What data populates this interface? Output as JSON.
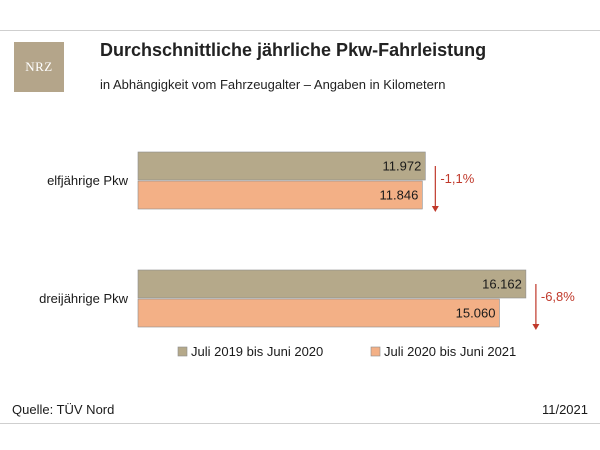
{
  "header": {
    "logo_text": "NRZ",
    "title": "Durchschnittliche jährliche Pkw-Fahrleistung",
    "subtitle": "in Abhängigkeit vom Fahrzeugalter – Angaben in Kilometern"
  },
  "footer": {
    "source": "Quelle: TÜV Nord",
    "date": "11/2021"
  },
  "chart_data": {
    "type": "bar",
    "orientation": "horizontal",
    "categories": [
      "elfjährige Pkw",
      "dreijährige Pkw"
    ],
    "series": [
      {
        "name": "Juli 2019 bis Juni 2020",
        "values": [
          11972,
          16162
        ],
        "labels": [
          "11.972",
          "16.162"
        ],
        "color": "#b5a98a"
      },
      {
        "name": "Juli 2020 bis Juni 2021",
        "values": [
          11846,
          15060
        ],
        "labels": [
          "11.846",
          "15.060"
        ],
        "color": "#f3b086"
      }
    ],
    "changes": [
      "-1,1%",
      "-6,8%"
    ],
    "change_color": "#c0392b",
    "legend_position": "bottom"
  }
}
